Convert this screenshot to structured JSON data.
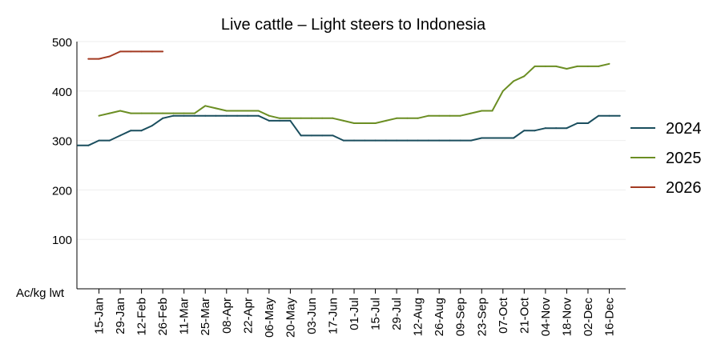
{
  "chart_data": {
    "type": "line",
    "title": "Live cattle – Light steers to Indonesia",
    "xlabel": "",
    "ylabel": "Ac/kg lwt",
    "ylim": [
      0,
      500
    ],
    "yticks": [
      100,
      200,
      300,
      400,
      500
    ],
    "x_tick_labels": [
      "15-Jan",
      "29-Jan",
      "12-Feb",
      "26-Feb",
      "11-Mar",
      "25-Mar",
      "08-Apr",
      "22-Apr",
      "06-May",
      "20-May",
      "03-Jun",
      "17-Jun",
      "01-Jul",
      "15-Jul",
      "29-Jul",
      "12-Aug",
      "26-Aug",
      "09-Sep",
      "23-Sep",
      "07-Oct",
      "21-Oct",
      "04-Nov",
      "18-Nov",
      "02-Dec",
      "16-Dec"
    ],
    "x_unit": "week index (0 = first week of January, 2 = 15-Jan, 50 = 16-Dec)",
    "grid": "horizontal",
    "legend_position": "right",
    "series": [
      {
        "name": "2024",
        "color": "#1a4e5e",
        "x": [
          0,
          1,
          2,
          3,
          4,
          5,
          6,
          7,
          8,
          9,
          10,
          11,
          12,
          13,
          14,
          15,
          16,
          17,
          18,
          19,
          20,
          21,
          22,
          23,
          24,
          25,
          26,
          27,
          28,
          29,
          30,
          31,
          32,
          33,
          34,
          35,
          36,
          37,
          38,
          39,
          40,
          41,
          42,
          43,
          44,
          45,
          46,
          47,
          48,
          49,
          50,
          51
        ],
        "values": [
          290,
          290,
          300,
          300,
          310,
          320,
          320,
          330,
          345,
          350,
          350,
          350,
          350,
          350,
          350,
          350,
          350,
          350,
          340,
          340,
          340,
          310,
          310,
          310,
          310,
          300,
          300,
          300,
          300,
          300,
          300,
          300,
          300,
          300,
          300,
          300,
          300,
          300,
          305,
          305,
          305,
          305,
          320,
          320,
          325,
          325,
          325,
          335,
          335,
          350,
          350,
          350
        ]
      },
      {
        "name": "2025",
        "color": "#6b8e23",
        "x": [
          2,
          3,
          4,
          5,
          6,
          7,
          8,
          9,
          10,
          11,
          12,
          13,
          14,
          15,
          16,
          17,
          18,
          19,
          20,
          21,
          22,
          23,
          24,
          25,
          26,
          27,
          28,
          29,
          30,
          31,
          32,
          33,
          34,
          35,
          36,
          37,
          38,
          39,
          40,
          41,
          42,
          43,
          44,
          45,
          46,
          47,
          48,
          49,
          50
        ],
        "values": [
          350,
          355,
          360,
          355,
          355,
          355,
          355,
          355,
          355,
          355,
          370,
          365,
          360,
          360,
          360,
          360,
          350,
          345,
          345,
          345,
          345,
          345,
          345,
          340,
          335,
          335,
          335,
          340,
          345,
          345,
          345,
          350,
          350,
          350,
          350,
          355,
          360,
          360,
          400,
          420,
          430,
          450,
          450,
          450,
          445,
          450,
          450,
          450,
          455
        ]
      },
      {
        "name": "2026",
        "color": "#a33a22",
        "x": [
          1,
          2,
          3,
          4,
          5,
          6,
          7,
          8
        ],
        "values": [
          465,
          465,
          470,
          480,
          480,
          480,
          480,
          480
        ]
      }
    ]
  }
}
